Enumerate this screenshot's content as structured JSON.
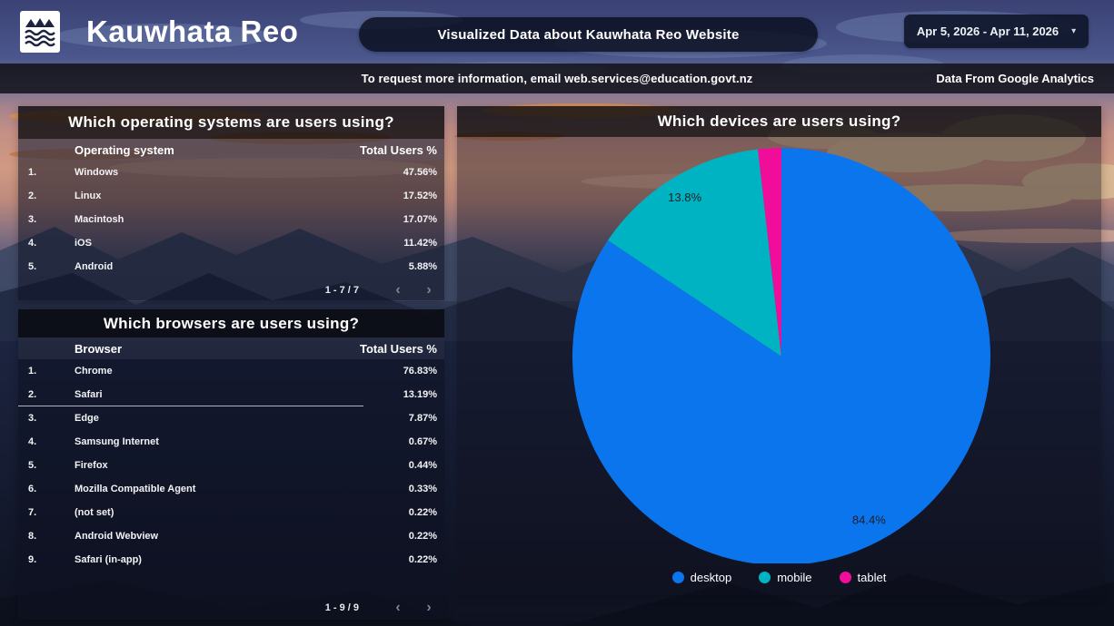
{
  "header": {
    "logo_title": "Kauwhata Reo",
    "banner_title": "Visualized Data about Kauwhata Reo Website",
    "date_range": "Apr 5, 2026 - Apr 11, 2026",
    "info_text": "To request more information, email web.services@education.govt.nz",
    "source_text": "Data From Google Analytics"
  },
  "os_table": {
    "title": "Which operating systems are users using?",
    "columns": {
      "dimension": "Operating system",
      "metric": "Total Users %"
    },
    "rows": [
      {
        "rank": "1.",
        "name": "Windows",
        "value": "47.56%"
      },
      {
        "rank": "2.",
        "name": "Linux",
        "value": "17.52%"
      },
      {
        "rank": "3.",
        "name": "Macintosh",
        "value": "17.07%"
      },
      {
        "rank": "4.",
        "name": "iOS",
        "value": "11.42%"
      },
      {
        "rank": "5.",
        "name": "Android",
        "value": "5.88%"
      }
    ],
    "pagination": "1 - 7 / 7"
  },
  "browser_table": {
    "title": "Which browsers are users using?",
    "columns": {
      "dimension": "Browser",
      "metric": "Total Users %"
    },
    "rows": [
      {
        "rank": "1.",
        "name": "Chrome",
        "value": "76.83%"
      },
      {
        "rank": "2.",
        "name": "Safari",
        "value": "13.19%"
      },
      {
        "rank": "3.",
        "name": "Edge",
        "value": "7.87%"
      },
      {
        "rank": "4.",
        "name": "Samsung Internet",
        "value": "0.67%"
      },
      {
        "rank": "5.",
        "name": "Firefox",
        "value": "0.44%"
      },
      {
        "rank": "6.",
        "name": "Mozilla Compatible Agent",
        "value": "0.33%"
      },
      {
        "rank": "7.",
        "name": "(not set)",
        "value": "0.22%"
      },
      {
        "rank": "8.",
        "name": "Android Webview",
        "value": "0.22%"
      },
      {
        "rank": "9.",
        "name": "Safari (in-app)",
        "value": "0.22%"
      }
    ],
    "pagination": "1 - 9 / 9"
  },
  "chart_data": {
    "type": "pie",
    "title": "Which devices are users using?",
    "categories": [
      "desktop",
      "mobile",
      "tablet"
    ],
    "values": [
      84.4,
      13.8,
      1.8
    ],
    "data_labels": [
      "84.4%",
      "13.8%"
    ],
    "colors": [
      "#0b75ee",
      "#00b3c2",
      "#ef0d9a"
    ],
    "legend_position": "bottom",
    "label_min_pct": 5
  }
}
